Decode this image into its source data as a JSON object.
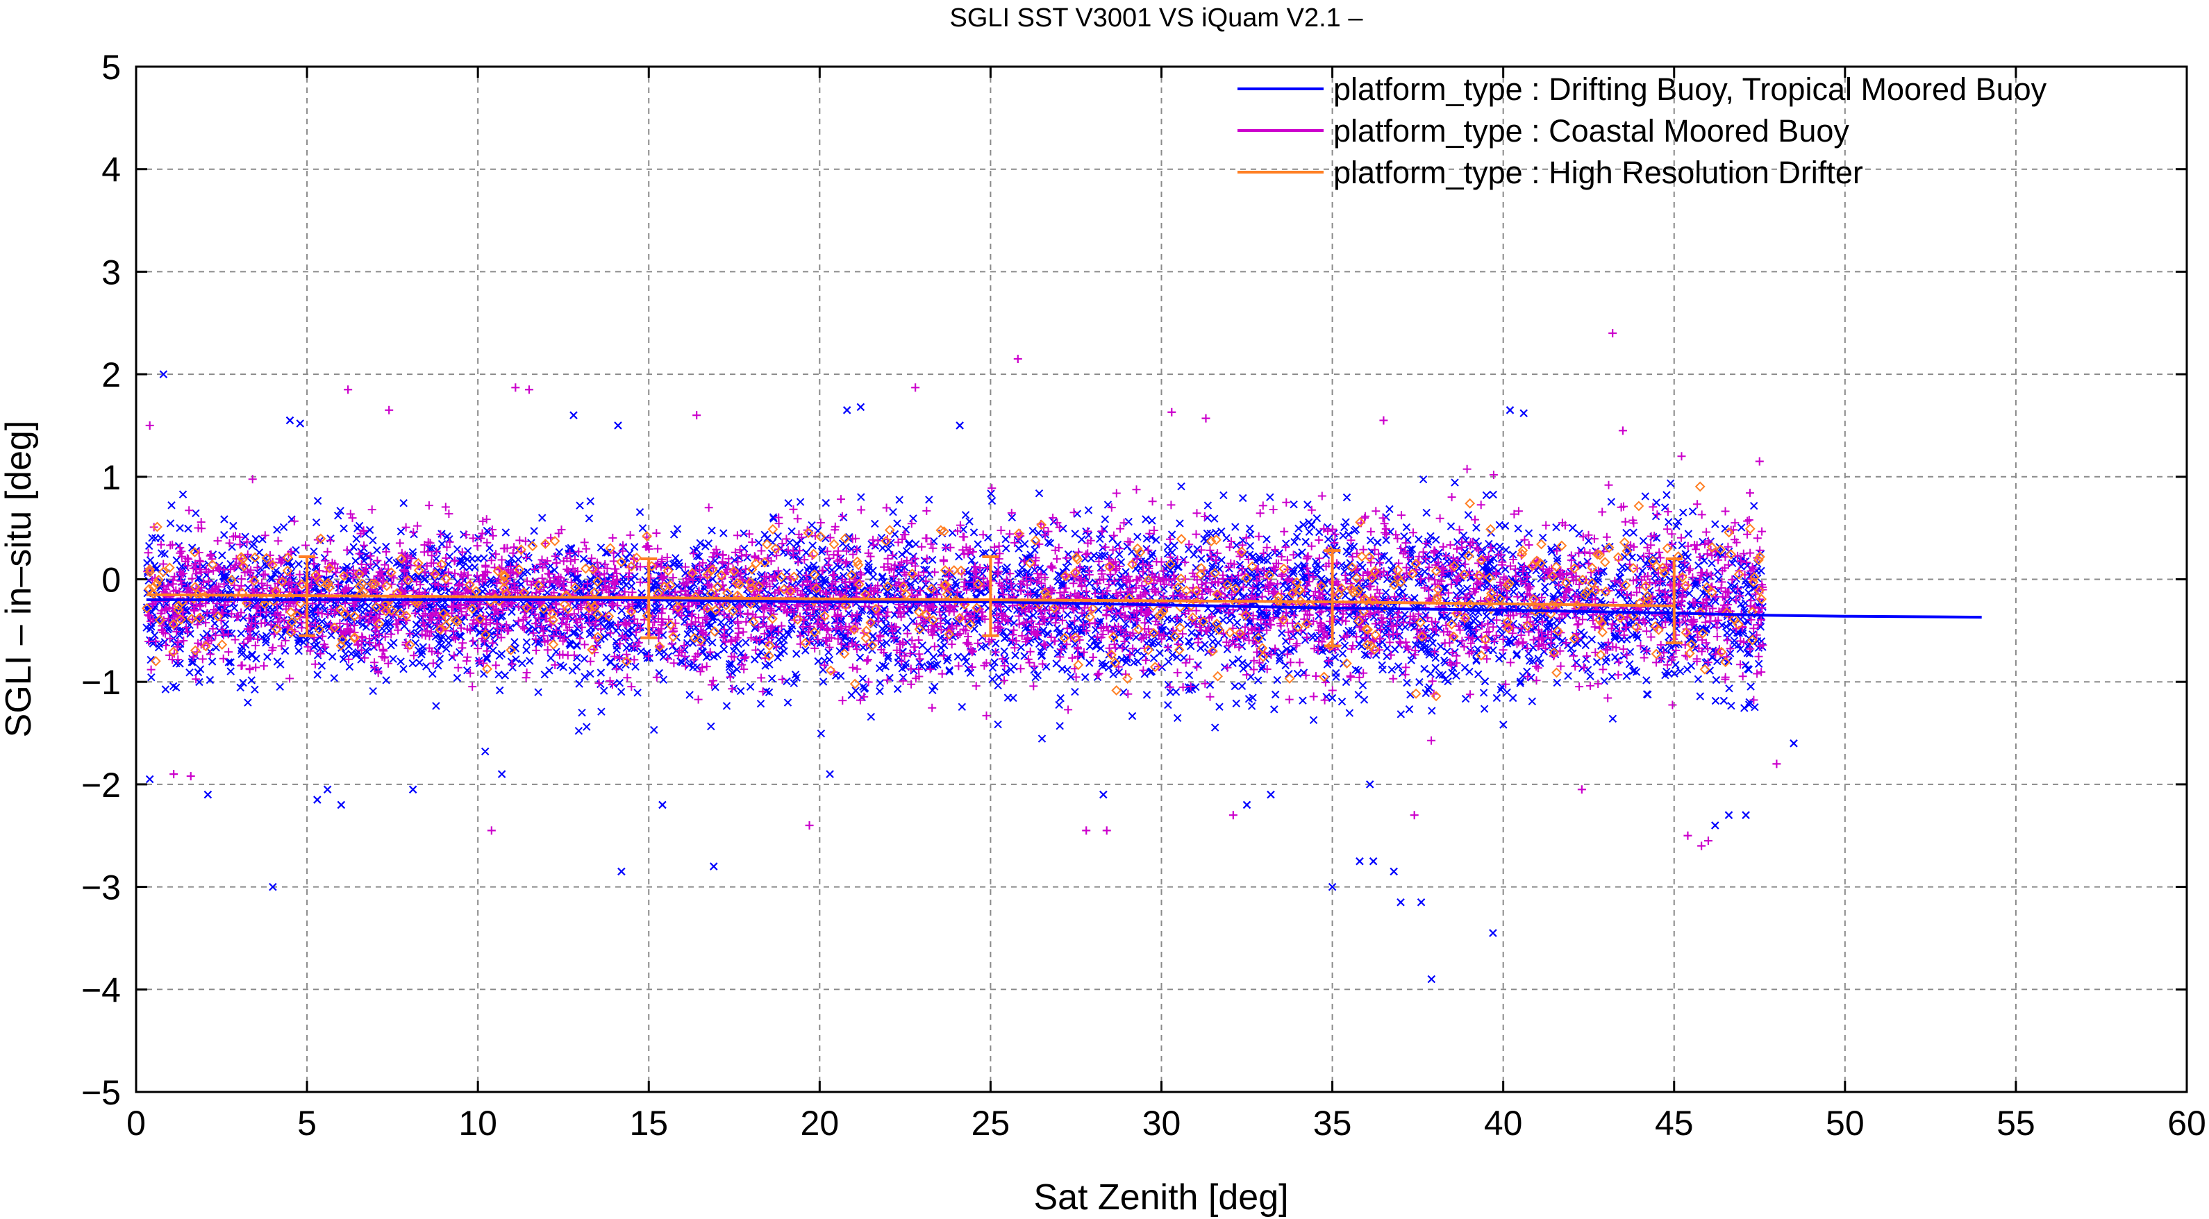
{
  "chart_data": {
    "type": "scatter",
    "title": "SGLI SST V3001 VS iQuam V2.1  –",
    "xlabel": "Sat Zenith [deg]",
    "ylabel": "SGLI – in–situ [deg]",
    "xlim": [
      0,
      60
    ],
    "ylim": [
      -5,
      5
    ],
    "x_ticks": [
      "0",
      "5",
      "10",
      "15",
      "20",
      "25",
      "30",
      "35",
      "40",
      "45",
      "50",
      "55",
      "60"
    ],
    "y_ticks": [
      "−5",
      "−4",
      "−3",
      "−2",
      "−1",
      "0",
      "1",
      "2",
      "3",
      "4",
      "5"
    ],
    "grid": true,
    "legend_position": "top-right",
    "series": [
      {
        "name": "platform_type : Drifting Buoy, Tropical Moored Buoy",
        "color": "#0000ff",
        "marker": "x",
        "point_cloud": {
          "x_range": [
            0.3,
            47.6
          ],
          "mean": -0.25,
          "spread": 0.35
        },
        "mean_line": {
          "x": [
            0.3,
            5,
            10,
            15,
            20,
            25,
            30,
            35,
            40,
            45,
            47.6,
            50,
            54
          ],
          "y": [
            -0.2,
            -0.2,
            -0.2,
            -0.2,
            -0.22,
            -0.22,
            -0.25,
            -0.28,
            -0.3,
            -0.33,
            -0.35,
            -0.36,
            -0.37
          ]
        },
        "outliers": [
          [
            0.8,
            2.0
          ],
          [
            4.5,
            1.55
          ],
          [
            4.8,
            1.52
          ],
          [
            12.8,
            1.6
          ],
          [
            14.1,
            1.5
          ],
          [
            20.8,
            1.65
          ],
          [
            21.2,
            1.68
          ],
          [
            24.1,
            1.5
          ],
          [
            40.2,
            1.65
          ],
          [
            40.6,
            1.62
          ],
          [
            4.0,
            -3.0
          ],
          [
            14.2,
            -2.85
          ],
          [
            16.9,
            -2.8
          ],
          [
            35.0,
            -3.0
          ],
          [
            35.8,
            -2.75
          ],
          [
            36.2,
            -2.75
          ],
          [
            36.8,
            -2.85
          ],
          [
            37.0,
            -3.15
          ],
          [
            37.6,
            -3.15
          ],
          [
            37.9,
            -3.9
          ],
          [
            39.7,
            -3.45
          ],
          [
            0.4,
            -1.95
          ],
          [
            5.3,
            -2.15
          ],
          [
            5.6,
            -2.05
          ],
          [
            6.0,
            -2.2
          ],
          [
            10.7,
            -1.9
          ],
          [
            15.4,
            -2.2
          ],
          [
            20.3,
            -1.9
          ],
          [
            32.5,
            -2.2
          ],
          [
            33.2,
            -2.1
          ],
          [
            36.1,
            -2.0
          ],
          [
            46.2,
            -2.4
          ],
          [
            46.6,
            -2.3
          ],
          [
            47.1,
            -2.3
          ],
          [
            48.5,
            -1.6
          ],
          [
            2.1,
            -2.1
          ],
          [
            8.1,
            -2.05
          ],
          [
            28.3,
            -2.1
          ]
        ]
      },
      {
        "name": "platform_type : Coastal Moored Buoy",
        "color": "#cc00cc",
        "marker": "+",
        "point_cloud": {
          "x_range": [
            0.3,
            47.6
          ],
          "mean": -0.2,
          "spread": 0.32
        },
        "outliers": [
          [
            0.4,
            1.5
          ],
          [
            6.2,
            1.85
          ],
          [
            7.4,
            1.65
          ],
          [
            11.1,
            1.87
          ],
          [
            11.5,
            1.85
          ],
          [
            16.4,
            1.6
          ],
          [
            22.8,
            1.87
          ],
          [
            25.8,
            2.15
          ],
          [
            30.3,
            1.63
          ],
          [
            31.3,
            1.57
          ],
          [
            36.5,
            1.55
          ],
          [
            43.2,
            2.4
          ],
          [
            43.5,
            1.45
          ],
          [
            47.5,
            1.15
          ],
          [
            10.4,
            -2.45
          ],
          [
            19.7,
            -2.4
          ],
          [
            27.8,
            -2.45
          ],
          [
            28.4,
            -2.45
          ],
          [
            32.1,
            -2.3
          ],
          [
            46.0,
            -2.55
          ],
          [
            45.4,
            -2.5
          ],
          [
            45.8,
            -2.6
          ],
          [
            1.1,
            -1.9
          ],
          [
            1.6,
            -1.92
          ],
          [
            48.0,
            -1.8
          ],
          [
            37.4,
            -2.3
          ],
          [
            42.3,
            -2.05
          ]
        ]
      },
      {
        "name": "platform_type : High Resolution Drifter",
        "color": "#ff7f24",
        "marker": "o",
        "point_cloud": {
          "x_range": [
            0.3,
            47.6
          ],
          "mean": -0.18,
          "spread": 0.3
        },
        "mean_line": {
          "x": [
            0.3,
            5,
            10,
            15,
            20,
            25,
            30,
            35,
            40,
            45
          ],
          "y": [
            -0.15,
            -0.16,
            -0.17,
            -0.18,
            -0.19,
            -0.2,
            -0.21,
            -0.22,
            -0.24,
            -0.26
          ]
        },
        "error_bars": [
          {
            "x": 5,
            "y": -0.17,
            "low": -0.55,
            "high": 0.22
          },
          {
            "x": 15,
            "y": -0.18,
            "low": -0.57,
            "high": 0.2
          },
          {
            "x": 25,
            "y": -0.18,
            "low": -0.55,
            "high": 0.22
          },
          {
            "x": 35,
            "y": -0.18,
            "low": -0.65,
            "high": 0.28
          },
          {
            "x": 45,
            "y": -0.2,
            "low": -0.62,
            "high": 0.2
          }
        ]
      }
    ]
  }
}
